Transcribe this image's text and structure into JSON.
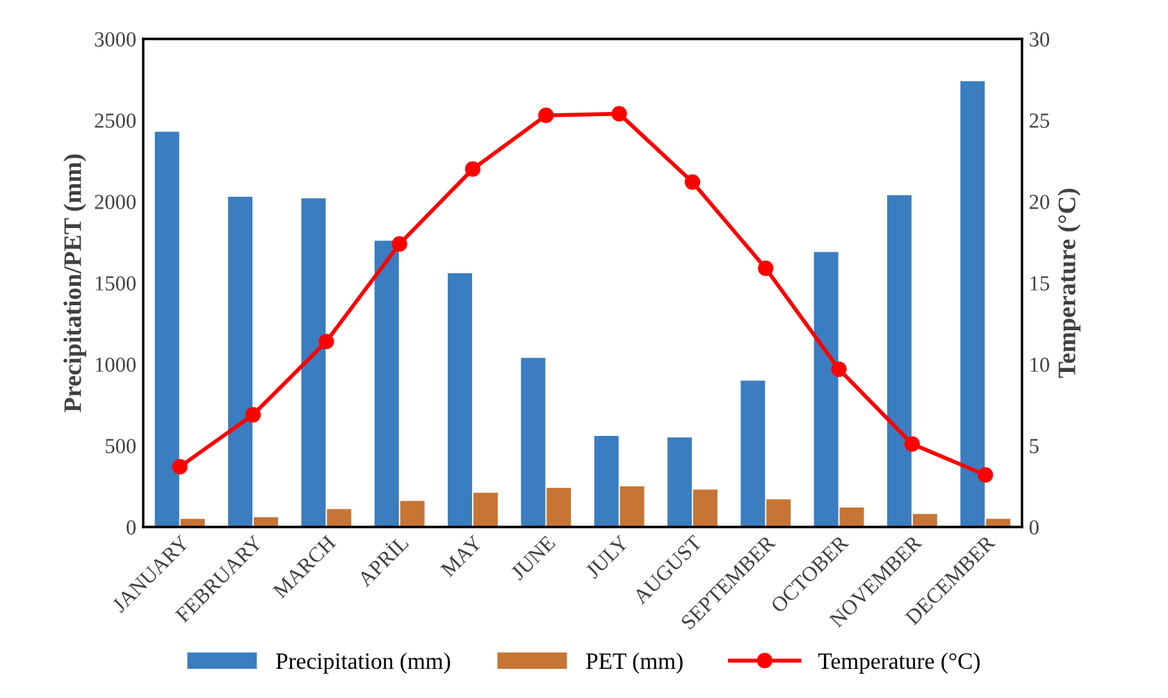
{
  "chart_data": {
    "type": "bar",
    "xlabel": null,
    "ylabel": "Precipitation/PET (mm)",
    "y2label": "Temperature (°C)",
    "categories": [
      "JANUARY",
      "FEBRUARY",
      "MARCH",
      "APRİL",
      "MAY",
      "JUNE",
      "JULY",
      "AUGUST",
      "SEPTEMBER",
      "OCTOBER",
      "NOVEMBER",
      "DECEMBER"
    ],
    "series": [
      {
        "name": "Precipitation (mm)",
        "color": "#3a7dc0",
        "values": [
          2430,
          2030,
          2020,
          1760,
          1560,
          1040,
          560,
          550,
          900,
          1690,
          2040,
          2740
        ]
      },
      {
        "name": "PET (mm)",
        "color": "#c77535",
        "values": [
          50,
          60,
          110,
          160,
          210,
          240,
          250,
          230,
          170,
          120,
          80,
          50
        ]
      },
      {
        "name": "Temperature (°C)",
        "type": "line",
        "axis": "y2",
        "color": "#ff0000",
        "marker": "circle",
        "values": [
          3.7,
          6.9,
          11.4,
          17.4,
          22.0,
          25.3,
          25.4,
          21.2,
          15.9,
          9.7,
          5.1,
          3.2
        ]
      }
    ],
    "ylim": [
      0,
      3000
    ],
    "yticks": [
      0,
      500,
      1000,
      1500,
      2000,
      2500,
      3000
    ],
    "y2lim": [
      0,
      30
    ],
    "y2ticks": [
      0,
      5,
      10,
      15,
      20,
      25,
      30
    ],
    "grid": false,
    "legend": "bottom"
  }
}
